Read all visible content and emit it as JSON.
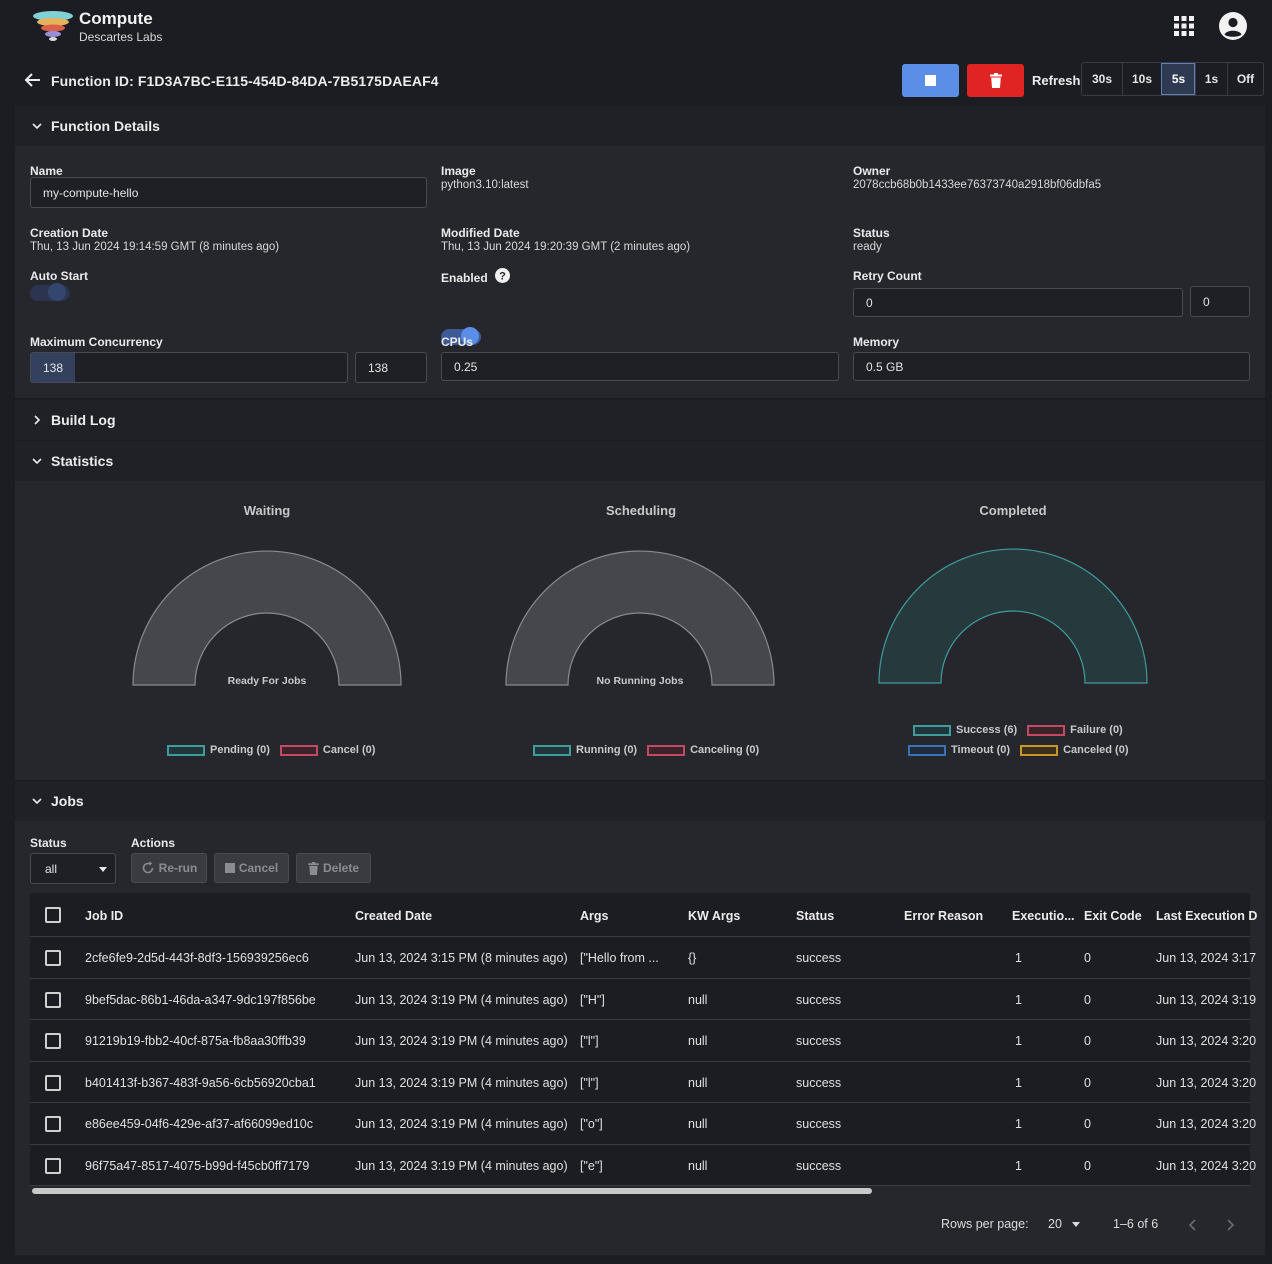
{
  "app": {
    "title": "Compute",
    "subtitle": "Descartes Labs"
  },
  "topbar": {
    "apps_icon": "grid-apps-icon",
    "account_icon": "account-circle-icon"
  },
  "header": {
    "function_title": "Function ID: F1D3A7BC-E115-454D-84DA-7B5175DAEAF4",
    "stop_icon": "stop-icon",
    "delete_icon": "trash-icon",
    "refresh_label": "Refresh",
    "refresh_options": [
      "30s",
      "10s",
      "5s",
      "1s",
      "Off"
    ],
    "refresh_selected": "5s"
  },
  "details": {
    "section_title": "Function Details",
    "name_label": "Name",
    "name_value": "my-compute-hello",
    "image_label": "Image",
    "image_value": "python3.10:latest",
    "owner_label": "Owner",
    "owner_value": "2078ccb68b0b1433ee76373740a2918bf06dbfa5",
    "creation_label": "Creation Date",
    "creation_value": "Thu, 13 Jun 2024 19:14:59 GMT (8 minutes ago)",
    "modified_label": "Modified Date",
    "modified_value": "Thu, 13 Jun 2024 19:20:39 GMT (2 minutes ago)",
    "status_label": "Status",
    "status_value": "ready",
    "auto_start_label": "Auto Start",
    "auto_start_on": false,
    "enabled_label": "Enabled",
    "enabled_on": true,
    "retry_label": "Retry Count",
    "retry_value": "0",
    "retry_value2": "0",
    "max_conc_label": "Maximum Concurrency",
    "max_conc_slider": "138",
    "max_conc_value": "138",
    "cpus_label": "CPUs",
    "cpus_value": "0.25",
    "memory_label": "Memory",
    "memory_value": "0.5 GB"
  },
  "build_log": {
    "section_title": "Build Log"
  },
  "statistics": {
    "section_title": "Statistics",
    "colors": {
      "teal": "#3f9c9c",
      "red": "#c24a62",
      "blue": "#3a73b5",
      "gold": "#c9962a",
      "gray_fill": "#46474c"
    }
  },
  "chart_data": [
    {
      "type": "pie",
      "title": "Waiting",
      "center_label": "Ready For Jobs",
      "categories": [
        "Pending (0)",
        "Cancel (0)"
      ],
      "values": [
        0,
        0
      ]
    },
    {
      "type": "pie",
      "title": "Scheduling",
      "center_label": "No Running Jobs",
      "categories": [
        "Running (0)",
        "Canceling (0)"
      ],
      "values": [
        0,
        0
      ]
    },
    {
      "type": "pie",
      "title": "Completed",
      "center_label": "",
      "categories": [
        "Success (6)",
        "Failure (0)",
        "Timeout (0)",
        "Canceled (0)"
      ],
      "values": [
        6,
        0,
        0,
        0
      ]
    }
  ],
  "jobs": {
    "section_title": "Jobs",
    "status_label": "Status",
    "status_value": "all",
    "actions_label": "Actions",
    "rerun_label": "Re-run",
    "cancel_label": "Cancel",
    "delete_label": "Delete",
    "columns": [
      "Job ID",
      "Created Date",
      "Args",
      "KW Args",
      "Status",
      "Error Reason",
      "Executio...",
      "Exit Code",
      "Last Execution D"
    ],
    "rows": [
      {
        "id": "2cfe6fe9-2d5d-443f-8df3-156939256ec6",
        "created": "Jun 13, 2024 3:15 PM (8 minutes ago)",
        "args": "[\"Hello from ...",
        "kwargs": "{}",
        "status": "success",
        "error": "",
        "executions": "1",
        "exit_code": "0",
        "last_exec": "Jun 13, 2024 3:17"
      },
      {
        "id": "9bef5dac-86b1-46da-a347-9dc197f856be",
        "created": "Jun 13, 2024 3:19 PM (4 minutes ago)",
        "args": "[\"H\"]",
        "kwargs": "null",
        "status": "success",
        "error": "",
        "executions": "1",
        "exit_code": "0",
        "last_exec": "Jun 13, 2024 3:19"
      },
      {
        "id": "91219b19-fbb2-40cf-875a-fb8aa30ffb39",
        "created": "Jun 13, 2024 3:19 PM (4 minutes ago)",
        "args": "[\"l\"]",
        "kwargs": "null",
        "status": "success",
        "error": "",
        "executions": "1",
        "exit_code": "0",
        "last_exec": "Jun 13, 2024 3:20"
      },
      {
        "id": "b401413f-b367-483f-9a56-6cb56920cba1",
        "created": "Jun 13, 2024 3:19 PM (4 minutes ago)",
        "args": "[\"l\"]",
        "kwargs": "null",
        "status": "success",
        "error": "",
        "executions": "1",
        "exit_code": "0",
        "last_exec": "Jun 13, 2024 3:20"
      },
      {
        "id": "e86ee459-04f6-429e-af37-af66099ed10c",
        "created": "Jun 13, 2024 3:19 PM (4 minutes ago)",
        "args": "[\"o\"]",
        "kwargs": "null",
        "status": "success",
        "error": "",
        "executions": "1",
        "exit_code": "0",
        "last_exec": "Jun 13, 2024 3:20"
      },
      {
        "id": "96f75a47-8517-4075-b99d-f45cb0ff7179",
        "created": "Jun 13, 2024 3:19 PM (4 minutes ago)",
        "args": "[\"e\"]",
        "kwargs": "null",
        "status": "success",
        "error": "",
        "executions": "1",
        "exit_code": "0",
        "last_exec": "Jun 13, 2024 3:20"
      }
    ],
    "rows_per_page_label": "Rows per page:",
    "rows_per_page": "20",
    "range": "1–6 of 6"
  }
}
